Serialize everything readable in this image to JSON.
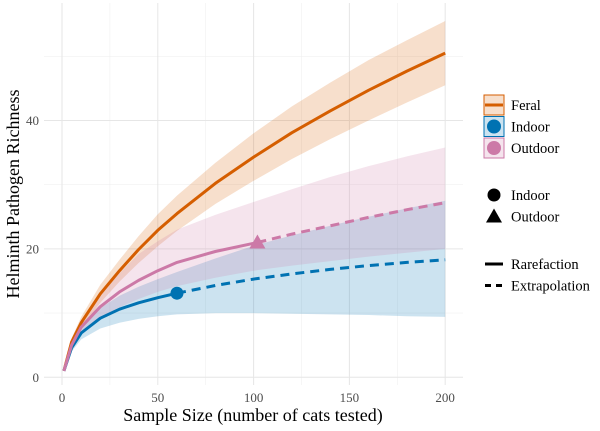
{
  "chart_data": {
    "type": "line",
    "title": "",
    "xlabel": "Sample Size (number of cats tested)",
    "ylabel": "Helminth Pathogen Richness",
    "xlim": [
      -9.4,
      209.3
    ],
    "ylim": [
      -1.2,
      58.3
    ],
    "xticks": [
      0,
      50,
      100,
      150,
      200
    ],
    "yticks": [
      0,
      20,
      40
    ],
    "grid": true,
    "legend_placement": "right",
    "series": [
      {
        "name": "Feral",
        "color": "#D55E00",
        "x": [
          1,
          5,
          10,
          20,
          30,
          40,
          50,
          60,
          80,
          100,
          120,
          140,
          160,
          180,
          200
        ],
        "y": [
          1,
          5.5,
          8.5,
          13,
          16.6,
          19.9,
          22.9,
          25.5,
          30.2,
          34.3,
          38.1,
          41.5,
          44.7,
          47.7,
          50.5
        ],
        "lower": [
          1,
          4.9,
          7.6,
          11.6,
          14.9,
          17.8,
          20.4,
          22.8,
          27,
          30.6,
          34,
          37.1,
          40,
          42.8,
          45.5
        ],
        "upper": [
          1,
          6.1,
          9.4,
          14.4,
          18.3,
          22,
          25.4,
          28.3,
          33.4,
          38,
          42.2,
          45.9,
          49.4,
          52.5,
          55.5
        ],
        "observed_x": 200,
        "observed_y": 50.5,
        "marker": "none"
      },
      {
        "name": "Indoor",
        "color": "#0072B2",
        "x": [
          1,
          5,
          10,
          20,
          30,
          40,
          50,
          60,
          80,
          100,
          120,
          140,
          160,
          180,
          200
        ],
        "y": [
          1,
          4.6,
          6.9,
          9.2,
          10.6,
          11.6,
          12.4,
          13.1,
          14.3,
          15.3,
          16.1,
          16.8,
          17.4,
          17.9,
          18.3
        ],
        "lower": [
          1,
          4,
          5.9,
          7.6,
          8.5,
          9.1,
          9.5,
          9.8,
          10,
          10,
          9.9,
          9.8,
          9.7,
          9.5,
          9.4
        ],
        "upper": [
          1,
          5.2,
          7.9,
          10.8,
          12.7,
          14.1,
          15.3,
          16.4,
          18.5,
          20.5,
          22.1,
          23.6,
          25,
          26.3,
          27.5
        ],
        "observed_x": 60,
        "observed_y": 13.1,
        "marker": "circle"
      },
      {
        "name": "Outdoor",
        "color": "#CC79A7",
        "x": [
          1,
          5,
          10,
          20,
          30,
          40,
          50,
          60,
          80,
          102,
          120,
          140,
          160,
          180,
          200
        ],
        "y": [
          1,
          5,
          7.8,
          11,
          13.3,
          15.1,
          16.6,
          17.9,
          19.6,
          21,
          22.3,
          23.6,
          24.9,
          26.1,
          27.2
        ],
        "lower": [
          1,
          4.4,
          6.7,
          9.2,
          10.9,
          12.2,
          13.3,
          14.2,
          15.5,
          16.7,
          17.4,
          18.1,
          18.8,
          19.4,
          20
        ],
        "upper": [
          1,
          5.6,
          8.9,
          13,
          16.2,
          19.2,
          21.2,
          23,
          25.3,
          27.5,
          29.3,
          31.2,
          32.9,
          34.4,
          35.8
        ],
        "observed_x": 102,
        "observed_y": 21,
        "marker": "triangle"
      }
    ],
    "legend": {
      "color_entries": [
        "Feral",
        "Indoor",
        "Outdoor"
      ],
      "shape_entries": [
        {
          "label": "Indoor",
          "shape": "circle"
        },
        {
          "label": "Outdoor",
          "shape": "triangle"
        }
      ],
      "linetype_entries": [
        {
          "label": "Rarefaction",
          "linetype": "solid"
        },
        {
          "label": "Extrapolation",
          "linetype": "dashed"
        }
      ]
    }
  }
}
